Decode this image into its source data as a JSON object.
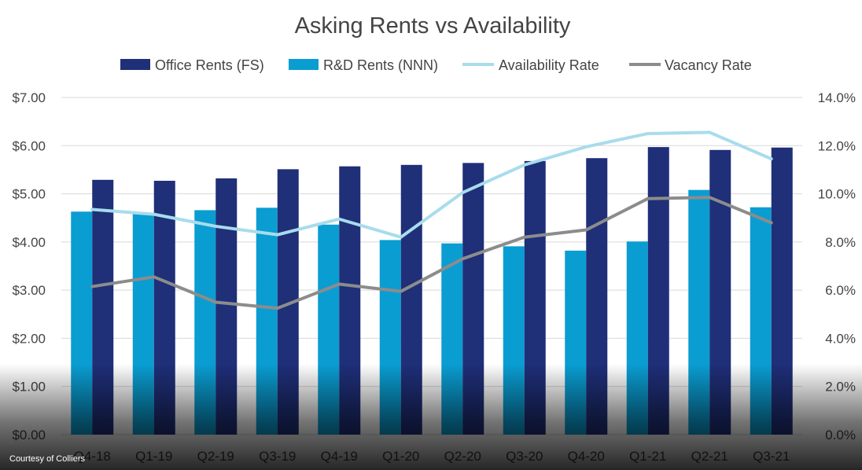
{
  "credit": "Courtesy of Colliers",
  "colors": {
    "office": "#1f2f78",
    "rd": "#0a9dd2",
    "availability": "#a8dcec",
    "vacancy": "#8c8c8c",
    "grid": "#d9d9d9"
  },
  "chart_data": {
    "type": "bar",
    "title": "Asking Rents vs Availability",
    "categories": [
      "Q4-18",
      "Q1-19",
      "Q2-19",
      "Q3-19",
      "Q4-19",
      "Q1-20",
      "Q2-20",
      "Q3-20",
      "Q4-20",
      "Q1-21",
      "Q2-21",
      "Q3-21"
    ],
    "legend_position": "top",
    "grid": true,
    "y_left": {
      "ticks": [
        "$0.00",
        "$1.00",
        "$2.00",
        "$3.00",
        "$4.00",
        "$5.00",
        "$6.00",
        "$7.00"
      ],
      "range": [
        0,
        7
      ]
    },
    "y_right": {
      "ticks": [
        "0.0%",
        "2.0%",
        "4.0%",
        "6.0%",
        "8.0%",
        "10.0%",
        "12.0%",
        "14.0%"
      ],
      "range": [
        0,
        14
      ]
    },
    "series": [
      {
        "name": "Office Rents (FS)",
        "type": "bar",
        "axis": "left",
        "values": [
          5.29,
          5.27,
          5.32,
          5.51,
          5.57,
          5.6,
          5.64,
          5.68,
          5.74,
          5.97,
          5.91,
          5.96
        ]
      },
      {
        "name": "R&D Rents (NNN)",
        "type": "bar",
        "axis": "left",
        "values": [
          4.63,
          4.58,
          4.66,
          4.71,
          4.36,
          4.04,
          3.97,
          3.91,
          3.82,
          4.01,
          5.08,
          4.72
        ]
      },
      {
        "name": "Availability Rate",
        "type": "line",
        "axis": "right",
        "values": [
          9.35,
          9.15,
          8.65,
          8.3,
          8.95,
          8.2,
          10.05,
          11.2,
          11.95,
          12.5,
          12.55,
          11.45
        ]
      },
      {
        "name": "Vacancy Rate",
        "type": "line",
        "axis": "right",
        "values": [
          6.15,
          6.55,
          5.5,
          5.25,
          6.25,
          5.95,
          7.3,
          8.2,
          8.5,
          9.8,
          9.85,
          8.8
        ]
      }
    ]
  }
}
